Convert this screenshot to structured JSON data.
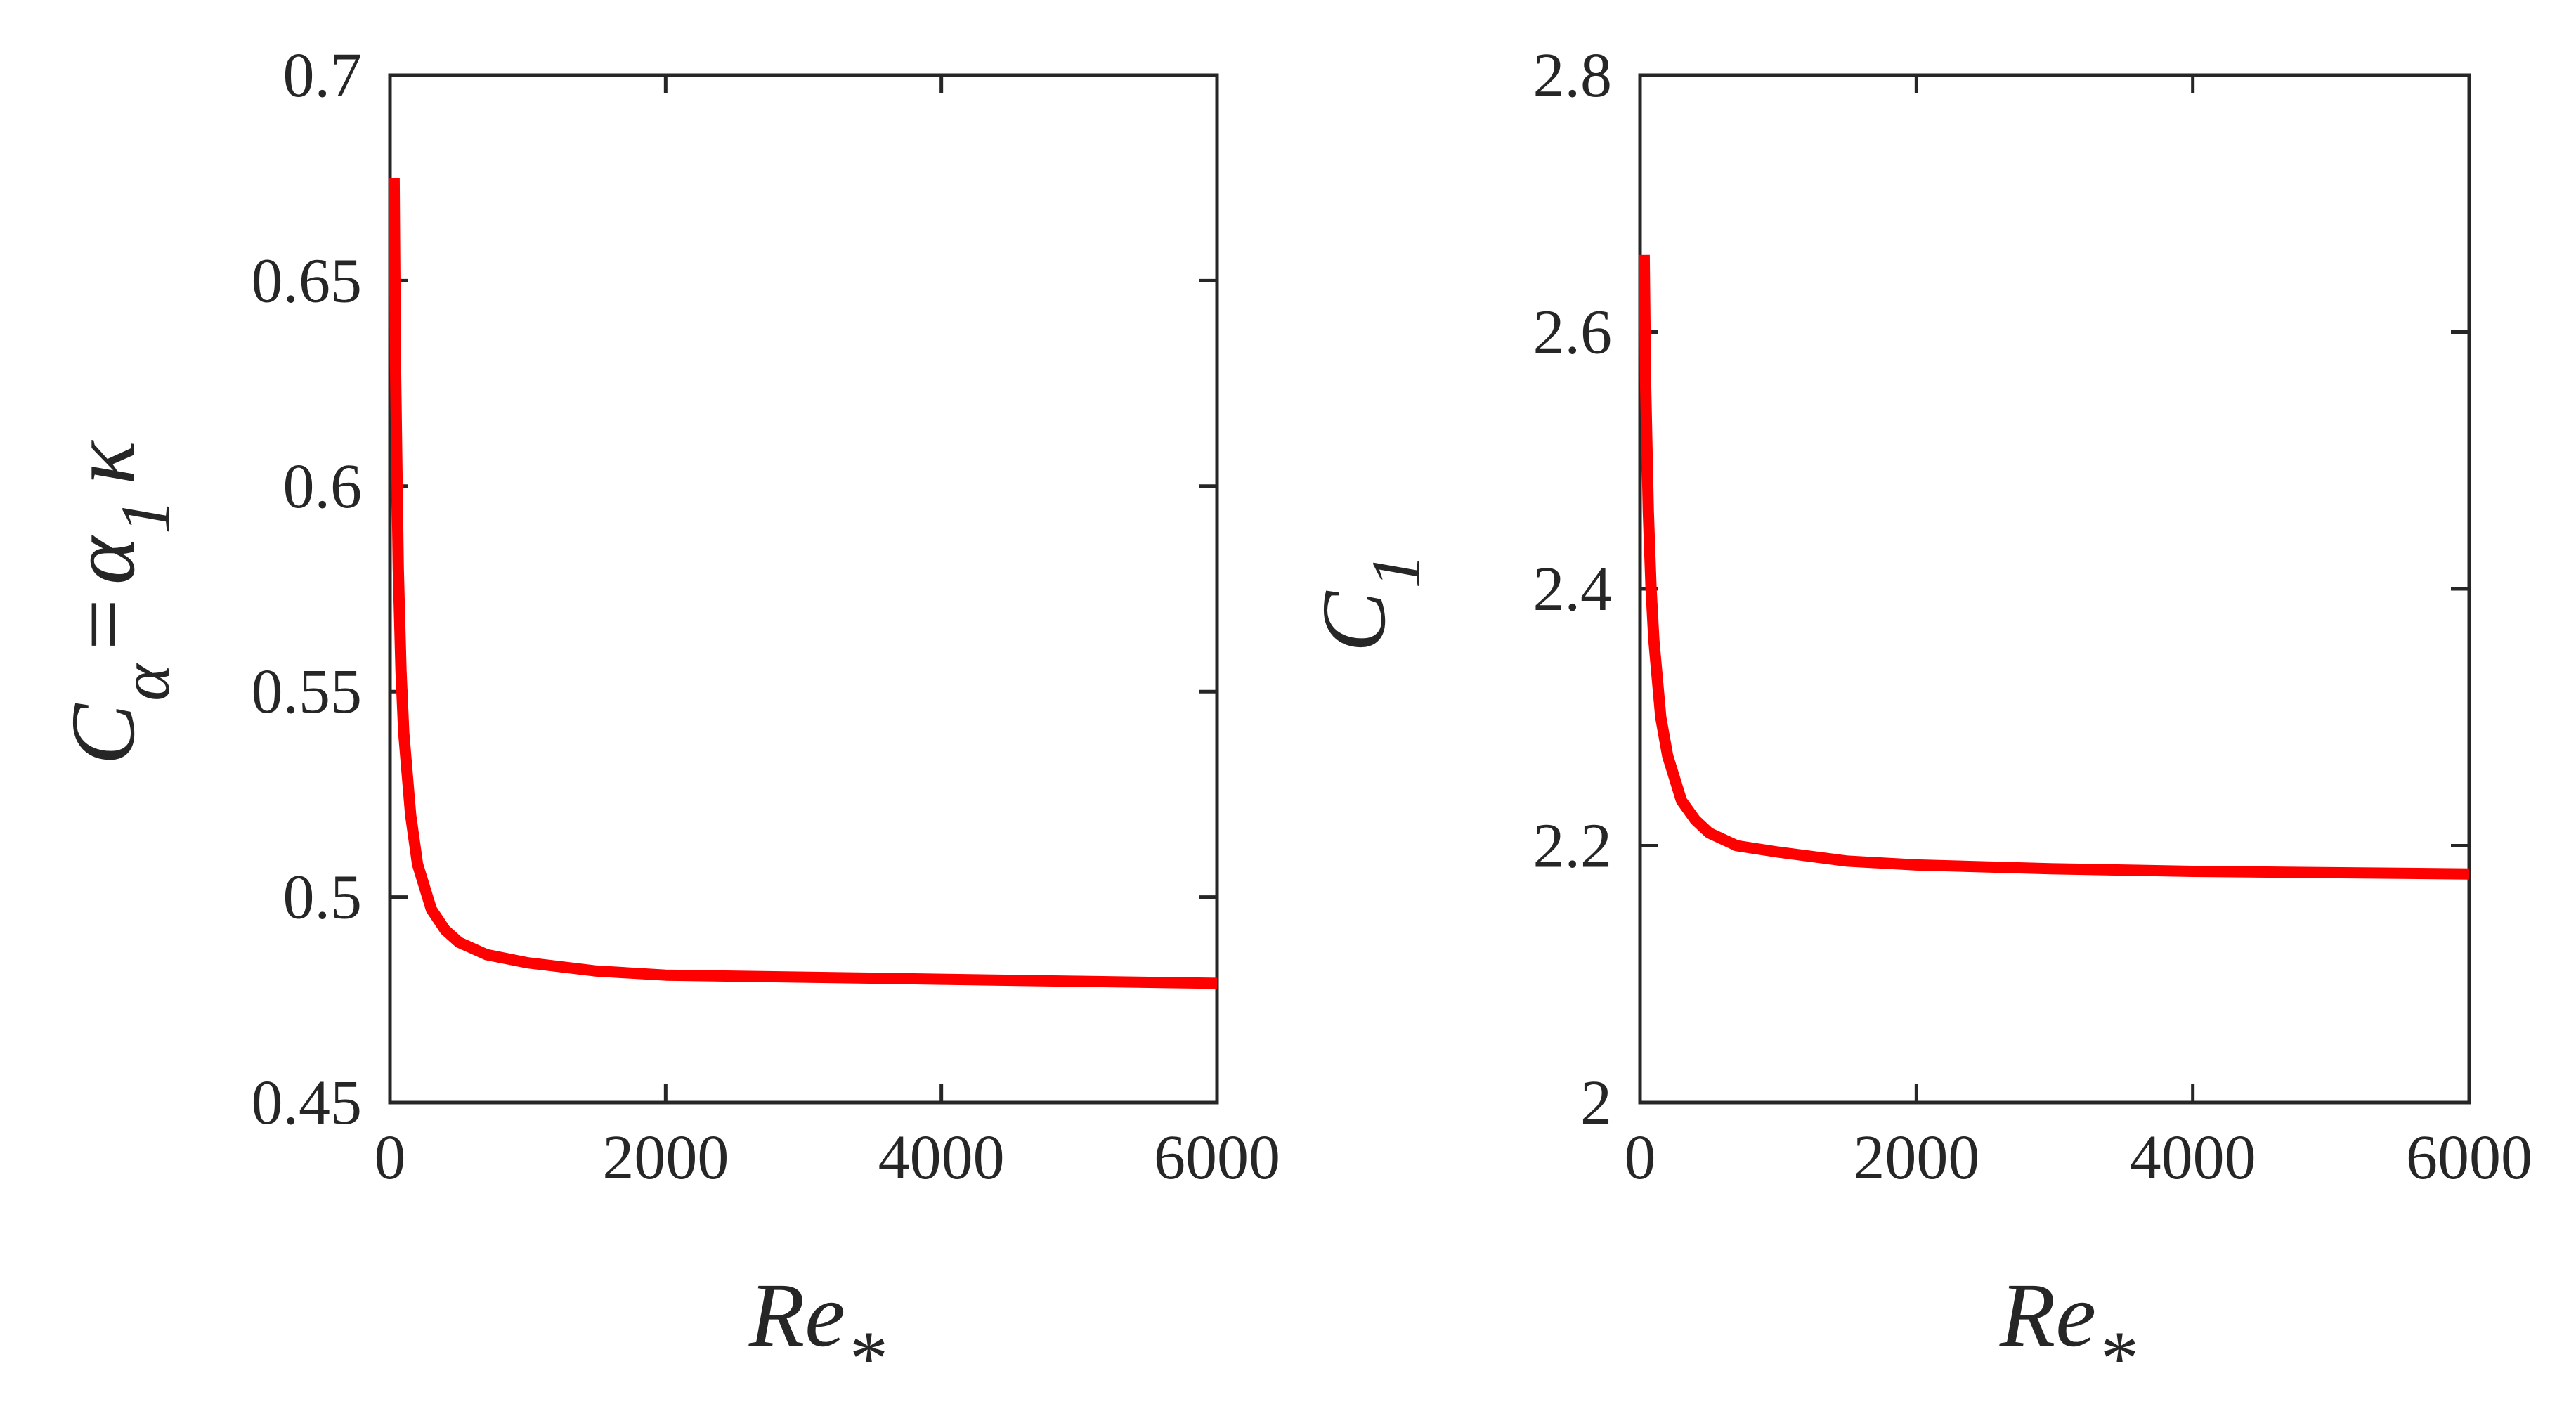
{
  "colors": {
    "series": "#ff0000",
    "axes": "#262626"
  },
  "chart_data": [
    {
      "type": "line",
      "xlabel": "Re",
      "xlabel_sub": "*",
      "ylabel_parts": {
        "c": "C",
        "c_sub": "α",
        "equals": "=",
        "alpha": "α",
        "alpha_sub": "1",
        "kappa": "κ"
      },
      "xlim": [
        0,
        6000
      ],
      "ylim": [
        0.45,
        0.7
      ],
      "xticks": [
        0,
        2000,
        4000,
        6000
      ],
      "xtick_labels": [
        "0",
        "2000",
        "4000",
        "6000"
      ],
      "yticks": [
        0.45,
        0.5,
        0.55,
        0.6,
        0.65,
        0.7
      ],
      "ytick_labels": [
        "0.45",
        "0.5",
        "0.55",
        "0.6",
        "0.65",
        "0.7"
      ],
      "series": [
        {
          "name": "C_alpha",
          "x": [
            30,
            40,
            60,
            80,
            100,
            150,
            200,
            300,
            400,
            500,
            700,
            1000,
            1500,
            2000,
            3000,
            4000,
            5000,
            6000
          ],
          "y": [
            0.675,
            0.63,
            0.58,
            0.555,
            0.54,
            0.52,
            0.508,
            0.497,
            0.492,
            0.489,
            0.486,
            0.484,
            0.482,
            0.481,
            0.4805,
            0.48,
            0.4795,
            0.479
          ]
        }
      ]
    },
    {
      "type": "line",
      "xlabel": "Re",
      "xlabel_sub": "*",
      "ylabel_parts": {
        "c": "C",
        "c_sub": "1"
      },
      "xlim": [
        0,
        6000
      ],
      "ylim": [
        2.0,
        2.8
      ],
      "xticks": [
        0,
        2000,
        4000,
        6000
      ],
      "xtick_labels": [
        "0",
        "2000",
        "4000",
        "6000"
      ],
      "yticks": [
        2.0,
        2.2,
        2.4,
        2.6,
        2.8
      ],
      "ytick_labels": [
        "2",
        "2.2",
        "2.4",
        "2.6",
        "2.8"
      ],
      "series": [
        {
          "name": "C_1",
          "x": [
            30,
            40,
            60,
            80,
            100,
            150,
            200,
            300,
            400,
            500,
            700,
            1000,
            1500,
            2000,
            3000,
            4000,
            5000,
            6000
          ],
          "y": [
            2.66,
            2.56,
            2.46,
            2.4,
            2.36,
            2.3,
            2.27,
            2.235,
            2.22,
            2.21,
            2.2,
            2.195,
            2.188,
            2.185,
            2.182,
            2.18,
            2.179,
            2.178
          ]
        }
      ]
    }
  ]
}
